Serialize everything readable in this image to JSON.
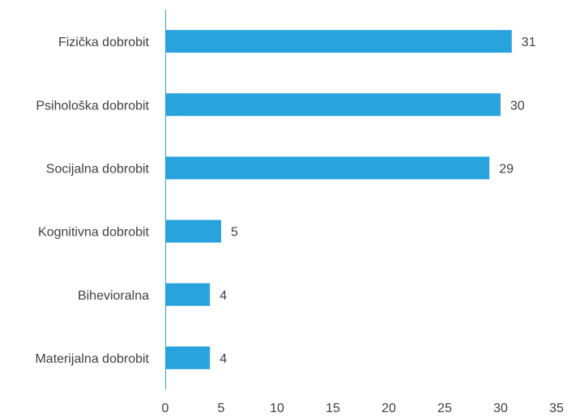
{
  "chart_data": {
    "type": "bar",
    "orientation": "horizontal",
    "categories": [
      "Fizička dobrobit",
      "Psihološka dobrobit",
      "Socijalna dobrobit",
      "Kognitivna dobrobit",
      "Bihevioralna",
      "Materijalna dobrobit"
    ],
    "values": [
      31,
      30,
      29,
      5,
      4,
      4
    ],
    "data_labels": [
      "31",
      "30",
      "29",
      "5",
      "4",
      "4"
    ],
    "x_ticks": [
      0,
      5,
      10,
      15,
      20,
      25,
      30,
      35
    ],
    "x_tick_labels": [
      "0",
      "5",
      "10",
      "15",
      "20",
      "25",
      "30",
      "35"
    ],
    "xlim": [
      0,
      35
    ],
    "grid": false,
    "legend": "none",
    "colors": {
      "bar": "#29a3de",
      "axis": "#29a3de",
      "text": "#404040"
    }
  }
}
